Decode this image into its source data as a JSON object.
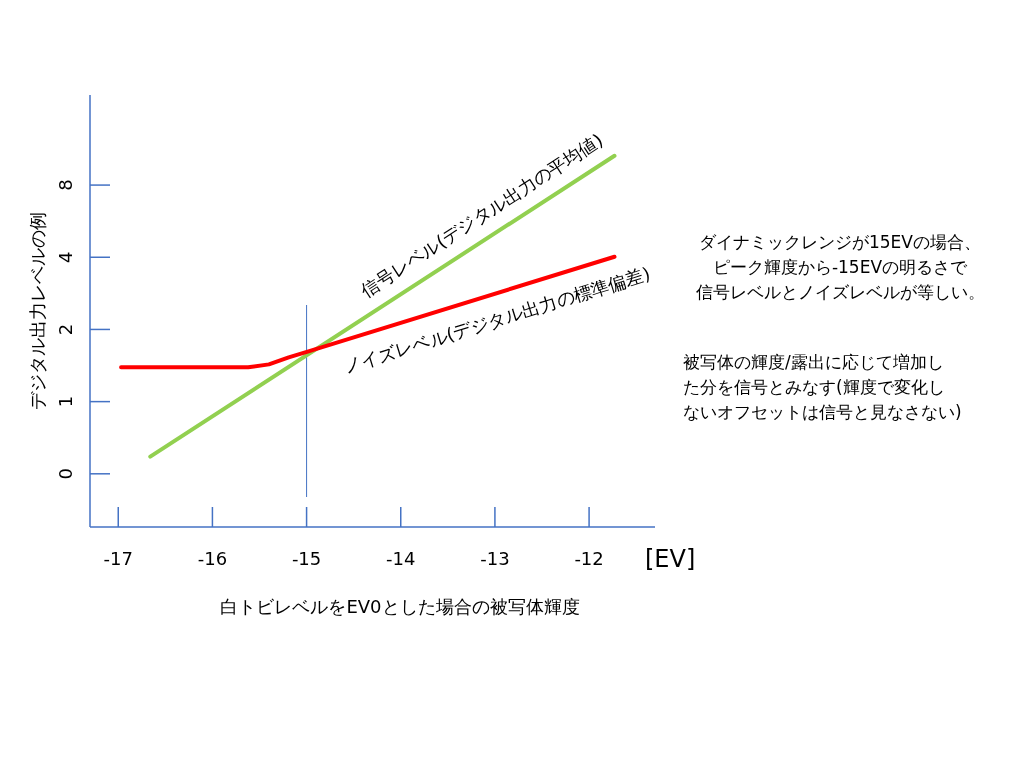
{
  "chart_data": {
    "type": "line",
    "xlabel": "白トビレベルをEV0とした場合の被写体輝度",
    "ylabel": "デジタル出力レベルの例",
    "xlim": [
      -17.3,
      -11.3
    ],
    "xticks": [
      -17,
      -16,
      -15,
      -14,
      -13,
      -12
    ],
    "ylim": [
      0.3,
      19
    ],
    "yticks": [
      {
        "value": 0.5,
        "label": "0"
      },
      1,
      2,
      4,
      8
    ],
    "log": "y",
    "grid": false,
    "legend": false,
    "marker": "none",
    "line_style": "solid",
    "series": [
      {
        "name": "信号レベル(デジタル出力の平均値)",
        "color": "#92d050",
        "x": [
          -16.66,
          -11.73
        ],
        "values": [
          0.59,
          10.6
        ]
      },
      {
        "name": "ノイズレベル(デジタル出力の標準偏差)",
        "color": "#ff0000",
        "x": [
          -16.97,
          -15.62,
          -15.4,
          -15.19,
          -14.98,
          -11.73
        ],
        "values": [
          1.39,
          1.39,
          1.43,
          1.53,
          1.62,
          4.02
        ]
      }
    ],
    "ref_lines": [
      {
        "axis": "x",
        "value": -15,
        "color": "#4472c4"
      }
    ],
    "annotations": [
      "[EV]",
      "ダイナミックレンジが15EVの場合、ピーク輝度から-15EVの明るさで信号レベルとノイズレベルが等しい。",
      "被写体の輝度/露出に応じて増加した分を信号とみなす(輝度で変化しないオフセットは信号と見なさない)"
    ]
  }
}
